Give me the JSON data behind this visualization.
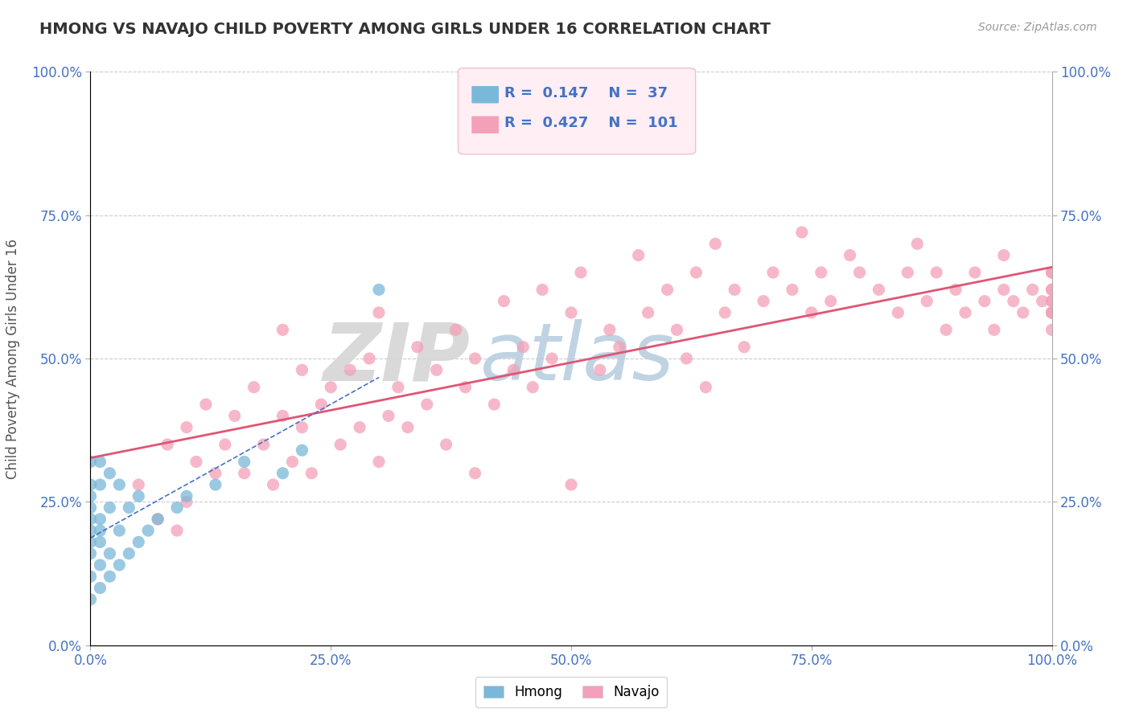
{
  "title": "HMONG VS NAVAJO CHILD POVERTY AMONG GIRLS UNDER 16 CORRELATION CHART",
  "source": "Source: ZipAtlas.com",
  "ylabel": "Child Poverty Among Girls Under 16",
  "xlabel": "",
  "xlim": [
    0,
    1
  ],
  "ylim": [
    0,
    1
  ],
  "xticks": [
    0.0,
    0.25,
    0.5,
    0.75,
    1.0
  ],
  "yticks": [
    0.0,
    0.25,
    0.5,
    0.75,
    1.0
  ],
  "xticklabels": [
    "0.0%",
    "25.0%",
    "50.0%",
    "75.0%",
    "100.0%"
  ],
  "yticklabels": [
    "0.0%",
    "25.0%",
    "50.0%",
    "75.0%",
    "100.0%"
  ],
  "hmong_color": "#7ab8d9",
  "navajo_color": "#f4a0b8",
  "hmong_R": 0.147,
  "hmong_N": 37,
  "navajo_R": 0.427,
  "navajo_N": 101,
  "hmong_scatter_x": [
    0.0,
    0.0,
    0.0,
    0.0,
    0.0,
    0.0,
    0.0,
    0.0,
    0.0,
    0.0,
    0.01,
    0.01,
    0.01,
    0.01,
    0.01,
    0.01,
    0.01,
    0.02,
    0.02,
    0.02,
    0.02,
    0.03,
    0.03,
    0.03,
    0.04,
    0.04,
    0.05,
    0.05,
    0.06,
    0.07,
    0.09,
    0.1,
    0.13,
    0.16,
    0.2,
    0.22,
    0.3
  ],
  "hmong_scatter_y": [
    0.08,
    0.12,
    0.16,
    0.2,
    0.24,
    0.28,
    0.32,
    0.18,
    0.22,
    0.26,
    0.1,
    0.14,
    0.18,
    0.22,
    0.28,
    0.32,
    0.2,
    0.12,
    0.16,
    0.24,
    0.3,
    0.14,
    0.2,
    0.28,
    0.16,
    0.24,
    0.18,
    0.26,
    0.2,
    0.22,
    0.24,
    0.26,
    0.28,
    0.32,
    0.3,
    0.34,
    0.62
  ],
  "navajo_scatter_x": [
    0.05,
    0.07,
    0.08,
    0.09,
    0.1,
    0.1,
    0.11,
    0.12,
    0.13,
    0.14,
    0.15,
    0.16,
    0.17,
    0.18,
    0.19,
    0.2,
    0.2,
    0.21,
    0.22,
    0.22,
    0.23,
    0.24,
    0.25,
    0.26,
    0.27,
    0.28,
    0.29,
    0.3,
    0.3,
    0.31,
    0.32,
    0.33,
    0.34,
    0.35,
    0.36,
    0.37,
    0.38,
    0.39,
    0.4,
    0.4,
    0.42,
    0.43,
    0.44,
    0.45,
    0.46,
    0.47,
    0.48,
    0.5,
    0.5,
    0.51,
    0.53,
    0.54,
    0.55,
    0.57,
    0.58,
    0.6,
    0.61,
    0.62,
    0.63,
    0.64,
    0.65,
    0.66,
    0.67,
    0.68,
    0.7,
    0.71,
    0.73,
    0.74,
    0.75,
    0.76,
    0.77,
    0.79,
    0.8,
    0.82,
    0.84,
    0.85,
    0.86,
    0.87,
    0.88,
    0.89,
    0.9,
    0.91,
    0.92,
    0.93,
    0.94,
    0.95,
    0.95,
    0.96,
    0.97,
    0.98,
    0.99,
    1.0,
    1.0,
    1.0,
    1.0,
    1.0,
    1.0,
    1.0,
    1.0,
    1.0,
    1.0
  ],
  "navajo_scatter_y": [
    0.28,
    0.22,
    0.35,
    0.2,
    0.38,
    0.25,
    0.32,
    0.42,
    0.3,
    0.35,
    0.4,
    0.3,
    0.45,
    0.35,
    0.28,
    0.4,
    0.55,
    0.32,
    0.38,
    0.48,
    0.3,
    0.42,
    0.45,
    0.35,
    0.48,
    0.38,
    0.5,
    0.32,
    0.58,
    0.4,
    0.45,
    0.38,
    0.52,
    0.42,
    0.48,
    0.35,
    0.55,
    0.45,
    0.5,
    0.3,
    0.42,
    0.6,
    0.48,
    0.52,
    0.45,
    0.62,
    0.5,
    0.58,
    0.28,
    0.65,
    0.48,
    0.55,
    0.52,
    0.68,
    0.58,
    0.62,
    0.55,
    0.5,
    0.65,
    0.45,
    0.7,
    0.58,
    0.62,
    0.52,
    0.6,
    0.65,
    0.62,
    0.72,
    0.58,
    0.65,
    0.6,
    0.68,
    0.65,
    0.62,
    0.58,
    0.65,
    0.7,
    0.6,
    0.65,
    0.55,
    0.62,
    0.58,
    0.65,
    0.6,
    0.55,
    0.62,
    0.68,
    0.6,
    0.58,
    0.62,
    0.6,
    0.55,
    0.58,
    0.62,
    0.6,
    0.65,
    0.58,
    0.62,
    0.6,
    0.58,
    0.65
  ],
  "background_color": "#ffffff",
  "grid_color": "#cccccc",
  "title_color": "#333333",
  "tick_color": "#4472c4",
  "navajo_line_color": "#e05575",
  "hmong_line_color": "#4472c4",
  "watermark_ZIP_color": "#d5d5d5",
  "watermark_atlas_color": "#b8cfe0"
}
